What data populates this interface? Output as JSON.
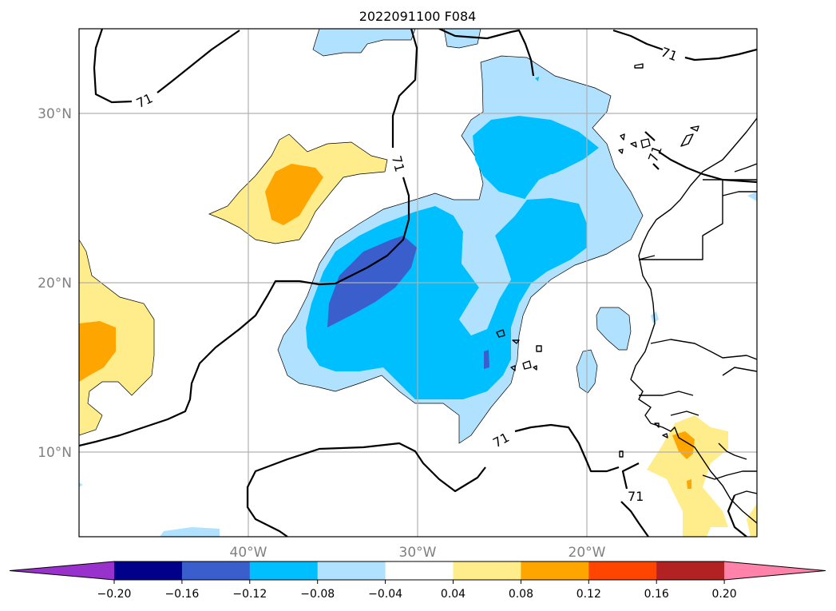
{
  "title": "2022091100 F084",
  "lat_labels": [
    "30°N",
    "20°N",
    "10°N"
  ],
  "lon_labels": [
    "40°W",
    "30°W",
    "20°W"
  ],
  "contour_value": "71",
  "colorbar": {
    "ticks": [
      "−0.20",
      "−0.16",
      "−0.12",
      "−0.08",
      "−0.04",
      "0.04",
      "0.08",
      "0.12",
      "0.16",
      "0.20"
    ],
    "colors": [
      "#9932cc",
      "#00008b",
      "#3a5fcd",
      "#00bfff",
      "#b0e2ff",
      "#ffffff",
      "#ffec8b",
      "#ffa500",
      "#ff4500",
      "#b22222",
      "#ff82ab"
    ],
    "extend": "both"
  },
  "palette": {
    "light_blue": "#b0e2ff",
    "deep_sky_blue": "#00bfff",
    "royal_blue": "#3a5fcd",
    "light_yellow": "#ffec8b",
    "orange": "#ffa500"
  }
}
